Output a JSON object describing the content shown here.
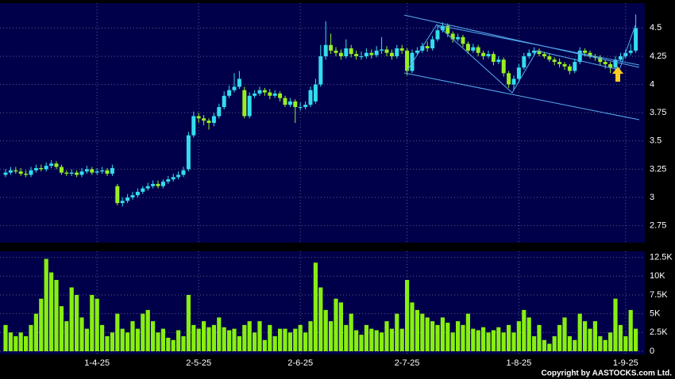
{
  "chart_data": {
    "type": "candlestick",
    "categories": [
      null,
      null,
      null,
      null,
      null,
      null,
      null,
      null,
      null,
      null,
      null,
      null,
      null,
      null,
      null,
      null,
      null,
      null,
      "1-4-25",
      null,
      null,
      null,
      null,
      null,
      null,
      null,
      null,
      null,
      null,
      null,
      null,
      null,
      null,
      null,
      null,
      null,
      null,
      null,
      "2-5-25",
      null,
      null,
      null,
      null,
      null,
      null,
      null,
      null,
      null,
      null,
      null,
      null,
      null,
      null,
      null,
      null,
      null,
      null,
      null,
      "2-6-25",
      null,
      null,
      null,
      null,
      null,
      null,
      null,
      null,
      null,
      null,
      null,
      null,
      null,
      null,
      null,
      null,
      null,
      null,
      null,
      null,
      "2-7-25",
      null,
      null,
      null,
      null,
      null,
      null,
      null,
      null,
      null,
      null,
      null,
      null,
      null,
      null,
      null,
      null,
      null,
      null,
      null,
      null,
      null,
      "1-8-25",
      null,
      null,
      null,
      null,
      null,
      null,
      null,
      null,
      null,
      null,
      null,
      null,
      null,
      null,
      null,
      null,
      null,
      null,
      null,
      null,
      "1-9-25",
      null,
      null
    ],
    "open": [
      3.2,
      3.22,
      3.24,
      3.23,
      3.21,
      3.2,
      3.24,
      3.26,
      3.25,
      3.28,
      3.3,
      3.27,
      3.22,
      3.21,
      3.22,
      3.2,
      3.23,
      3.25,
      3.22,
      3.23,
      3.24,
      3.21,
      3.1,
      2.95,
      2.97,
      3.0,
      3.02,
      3.05,
      3.08,
      3.1,
      3.12,
      3.1,
      3.14,
      3.16,
      3.18,
      3.2,
      3.25,
      3.55,
      3.72,
      3.7,
      3.68,
      3.66,
      3.72,
      3.8,
      3.9,
      3.95,
      3.98,
      3.95,
      3.72,
      3.9,
      3.92,
      3.95,
      3.93,
      3.9,
      3.92,
      3.88,
      3.82,
      3.85,
      3.8,
      3.8,
      3.82,
      3.85,
      4.0,
      4.25,
      4.35,
      4.3,
      4.28,
      4.25,
      4.32,
      4.27,
      4.25,
      4.25,
      4.28,
      4.26,
      4.3,
      4.31,
      4.28,
      4.25,
      4.32,
      4.3,
      4.12,
      4.28,
      4.3,
      4.34,
      4.32,
      4.4,
      4.48,
      4.52,
      4.45,
      4.4,
      4.42,
      4.36,
      4.3,
      4.33,
      4.28,
      4.25,
      4.27,
      4.2,
      4.22,
      4.1,
      4.0,
      4.05,
      4.15,
      4.25,
      4.28,
      4.3,
      4.27,
      4.25,
      4.22,
      4.2,
      4.18,
      4.16,
      4.12,
      4.2,
      4.3,
      4.28,
      4.25,
      4.24,
      4.2,
      4.18,
      4.15,
      4.22,
      4.25,
      4.28,
      4.3
    ],
    "high": [
      3.25,
      3.27,
      3.27,
      3.26,
      3.24,
      3.27,
      3.29,
      3.29,
      3.31,
      3.33,
      3.32,
      3.29,
      3.24,
      3.25,
      3.24,
      3.26,
      3.28,
      3.27,
      3.26,
      3.27,
      3.26,
      3.29,
      3.12,
      3.0,
      3.03,
      3.05,
      3.08,
      3.1,
      3.13,
      3.15,
      3.15,
      3.16,
      3.19,
      3.21,
      3.23,
      3.27,
      3.58,
      3.76,
      3.75,
      3.73,
      3.7,
      3.75,
      3.83,
      3.94,
      3.99,
      4.1,
      4.12,
      3.98,
      3.93,
      3.95,
      3.98,
      3.97,
      3.96,
      3.95,
      3.94,
      3.9,
      3.88,
      3.87,
      3.84,
      3.85,
      3.98,
      4.05,
      4.35,
      4.56,
      4.45,
      4.33,
      4.31,
      4.4,
      4.35,
      4.3,
      4.29,
      4.32,
      4.31,
      4.34,
      4.42,
      4.34,
      4.31,
      4.35,
      4.35,
      4.32,
      4.31,
      4.33,
      4.37,
      4.38,
      4.43,
      4.52,
      4.55,
      4.54,
      4.47,
      4.45,
      4.44,
      4.38,
      4.36,
      4.35,
      4.3,
      4.3,
      4.29,
      4.25,
      4.24,
      4.12,
      4.08,
      4.18,
      4.28,
      4.31,
      4.33,
      4.32,
      4.29,
      4.27,
      4.24,
      4.23,
      4.2,
      4.18,
      4.23,
      4.33,
      4.32,
      4.3,
      4.27,
      4.26,
      4.22,
      4.2,
      4.25,
      4.28,
      4.31,
      4.36,
      4.62
    ],
    "low": [
      3.18,
      3.2,
      3.21,
      3.19,
      3.18,
      3.18,
      3.22,
      3.23,
      3.23,
      3.26,
      3.25,
      3.2,
      3.19,
      3.19,
      3.18,
      3.18,
      3.21,
      3.2,
      3.2,
      3.21,
      3.19,
      3.19,
      2.93,
      2.92,
      2.95,
      2.98,
      3.0,
      3.03,
      3.06,
      3.08,
      3.08,
      3.08,
      3.12,
      3.14,
      3.16,
      3.18,
      3.23,
      3.53,
      3.66,
      3.64,
      3.6,
      3.63,
      3.7,
      3.78,
      3.88,
      3.93,
      3.96,
      3.7,
      3.7,
      3.88,
      3.9,
      3.9,
      3.87,
      3.88,
      3.85,
      3.8,
      3.8,
      3.66,
      3.77,
      3.78,
      3.8,
      3.83,
      3.98,
      4.22,
      4.27,
      4.25,
      4.22,
      4.23,
      4.24,
      4.22,
      4.22,
      4.23,
      4.23,
      4.24,
      4.27,
      4.25,
      4.22,
      4.23,
      4.27,
      4.08,
      4.1,
      4.26,
      4.28,
      4.29,
      4.3,
      4.38,
      4.46,
      4.42,
      4.37,
      4.38,
      4.33,
      4.27,
      4.28,
      4.25,
      4.22,
      4.23,
      4.17,
      4.18,
      4.07,
      3.97,
      3.95,
      4.02,
      4.13,
      4.23,
      4.26,
      4.25,
      4.23,
      4.2,
      4.17,
      4.15,
      4.13,
      4.09,
      4.1,
      4.18,
      4.25,
      4.23,
      4.21,
      4.17,
      4.14,
      4.1,
      4.13,
      4.2,
      4.23,
      4.26,
      4.28
    ],
    "close": [
      3.22,
      3.24,
      3.23,
      3.21,
      3.2,
      3.24,
      3.26,
      3.25,
      3.28,
      3.3,
      3.27,
      3.22,
      3.21,
      3.22,
      3.2,
      3.23,
      3.25,
      3.22,
      3.23,
      3.24,
      3.21,
      3.26,
      2.95,
      2.97,
      3.0,
      3.02,
      3.05,
      3.08,
      3.1,
      3.12,
      3.1,
      3.14,
      3.16,
      3.18,
      3.2,
      3.24,
      3.55,
      3.72,
      3.7,
      3.68,
      3.66,
      3.72,
      3.8,
      3.9,
      3.95,
      3.98,
      4.05,
      3.72,
      3.9,
      3.92,
      3.95,
      3.93,
      3.9,
      3.92,
      3.88,
      3.82,
      3.85,
      3.8,
      3.8,
      3.82,
      3.95,
      4.0,
      4.25,
      4.35,
      4.3,
      4.28,
      4.25,
      4.32,
      4.27,
      4.25,
      4.25,
      4.28,
      4.26,
      4.3,
      4.31,
      4.28,
      4.25,
      4.32,
      4.3,
      4.12,
      4.28,
      4.3,
      4.34,
      4.32,
      4.4,
      4.48,
      4.52,
      4.45,
      4.4,
      4.42,
      4.36,
      4.3,
      4.33,
      4.28,
      4.25,
      4.27,
      4.2,
      4.22,
      4.1,
      4.0,
      4.05,
      4.15,
      4.25,
      4.28,
      4.3,
      4.27,
      4.25,
      4.22,
      4.2,
      4.18,
      4.16,
      4.12,
      4.2,
      4.3,
      4.28,
      4.25,
      4.24,
      4.2,
      4.18,
      4.15,
      4.22,
      4.25,
      4.28,
      4.3,
      4.5
    ],
    "volume": [
      3500,
      2500,
      2000,
      2500,
      2000,
      3500,
      5000,
      7000,
      12300,
      10500,
      9500,
      6000,
      4000,
      8500,
      7500,
      4500,
      3000,
      7500,
      7000,
      3500,
      2000,
      2500,
      5000,
      3000,
      2500,
      4000,
      3000,
      5000,
      5500,
      4000,
      2500,
      3000,
      1800,
      1500,
      2800,
      2000,
      7500,
      3500,
      3000,
      4000,
      3200,
      3500,
      4500,
      3200,
      2800,
      3000,
      2000,
      3500,
      4000,
      2500,
      4000,
      1500,
      3500,
      2000,
      3000,
      3000,
      2500,
      3000,
      3500,
      2500,
      4000,
      11800,
      8500,
      5500,
      4000,
      7000,
      6500,
      3500,
      5000,
      2800,
      2200,
      3500,
      3000,
      2800,
      2500,
      4000,
      3000,
      5000,
      3000,
      9500,
      6500,
      5500,
      5000,
      4500,
      4000,
      3500,
      4500,
      3800,
      2500,
      4000,
      3500,
      5000,
      3000,
      2800,
      3200,
      2500,
      2800,
      3200,
      2500,
      3500,
      2500,
      4000,
      5500,
      4500,
      2000,
      3500,
      1500,
      1000,
      2000,
      3500,
      4500,
      2000,
      1500,
      5000,
      4000,
      3000,
      4000,
      2000,
      1500,
      2500,
      7000,
      3500,
      2000,
      5500,
      3000
    ],
    "up_color": "#33ddee",
    "down_color": "#99ee22",
    "volume_color": "#88ee11",
    "ylim": [
      2.6,
      4.72
    ],
    "yticks": [
      2.75,
      3,
      3.25,
      3.5,
      3.75,
      4,
      4.25,
      4.5
    ],
    "volume_ylim": [
      0,
      13200
    ],
    "volume_ticks": [
      0,
      {
        "value": 2500,
        "label": "2.5K"
      },
      {
        "value": 5000,
        "label": "5K"
      },
      {
        "value": 7500,
        "label": "7.5K"
      },
      {
        "value": 10000,
        "label": "10K"
      },
      {
        "value": 12500,
        "label": "12.5K"
      }
    ],
    "grid": true,
    "copyright": "Copyright by AASTOCKS.com Ltd."
  }
}
